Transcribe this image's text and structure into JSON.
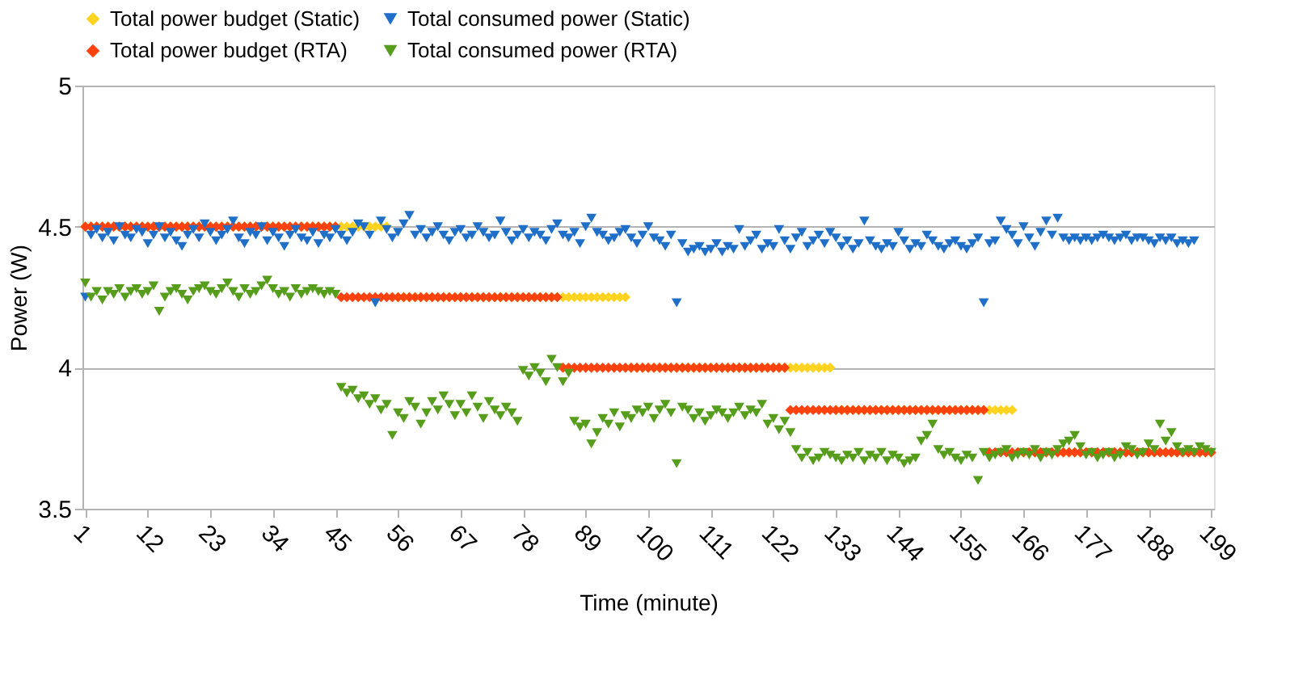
{
  "chart_data": {
    "type": "scatter",
    "xlabel": "Time (minute)",
    "ylabel": "Power (W)",
    "x": [
      1,
      2,
      3,
      4,
      5,
      6,
      7,
      8,
      9,
      10,
      11,
      12,
      13,
      14,
      15,
      16,
      17,
      18,
      19,
      20,
      21,
      22,
      23,
      24,
      25,
      26,
      27,
      28,
      29,
      30,
      31,
      32,
      33,
      34,
      35,
      36,
      37,
      38,
      39,
      40,
      41,
      42,
      43,
      44,
      45,
      46,
      47,
      48,
      49,
      50,
      51,
      52,
      53,
      54,
      55,
      56,
      57,
      58,
      59,
      60,
      61,
      62,
      63,
      64,
      65,
      66,
      67,
      68,
      69,
      70,
      71,
      72,
      73,
      74,
      75,
      76,
      77,
      78,
      79,
      80,
      81,
      82,
      83,
      84,
      85,
      86,
      87,
      88,
      89,
      90,
      91,
      92,
      93,
      94,
      95,
      96,
      97,
      98,
      99,
      100,
      101,
      102,
      103,
      104,
      105,
      106,
      107,
      108,
      109,
      110,
      111,
      112,
      113,
      114,
      115,
      116,
      117,
      118,
      119,
      120,
      121,
      122,
      123,
      124,
      125,
      126,
      127,
      128,
      129,
      130,
      131,
      132,
      133,
      134,
      135,
      136,
      137,
      138,
      139,
      140,
      141,
      142,
      143,
      144,
      145,
      146,
      147,
      148,
      149,
      150,
      151,
      152,
      153,
      154,
      155,
      156,
      157,
      158,
      159,
      160,
      161,
      162,
      163,
      164,
      165,
      166,
      167,
      168,
      169,
      170,
      171,
      172,
      173,
      174,
      175,
      176,
      177,
      178,
      179,
      180,
      181,
      182,
      183,
      184,
      185,
      186,
      187,
      188,
      189,
      190,
      191,
      192,
      193,
      194,
      195,
      196,
      197,
      198,
      199
    ],
    "xlim": [
      0.5,
      199.5
    ],
    "xticks": [
      1,
      12,
      23,
      34,
      45,
      56,
      67,
      78,
      89,
      100,
      111,
      122,
      133,
      144,
      155,
      166,
      177,
      188,
      199
    ],
    "ylim": [
      3.5,
      5
    ],
    "yticks": [
      3.5,
      4,
      4.5,
      5
    ],
    "grid": "y",
    "legend": "top",
    "series": [
      {
        "name": "Total power budget (Static)",
        "color": "#ffd320",
        "marker": "diamond",
        "values": [
          4.5,
          4.5,
          4.5,
          4.5,
          4.5,
          4.5,
          4.5,
          4.5,
          4.5,
          4.5,
          4.5,
          4.5,
          4.5,
          4.5,
          4.5,
          4.5,
          4.5,
          4.5,
          4.5,
          4.5,
          4.5,
          4.5,
          4.5,
          4.5,
          4.5,
          4.5,
          4.5,
          4.5,
          4.5,
          4.5,
          4.5,
          4.5,
          4.5,
          4.5,
          4.5,
          4.5,
          4.5,
          4.5,
          4.5,
          4.5,
          4.5,
          4.5,
          4.5,
          4.5,
          4.5,
          4.5,
          4.5,
          4.5,
          4.5,
          4.5,
          4.5,
          4.5,
          4.5,
          4.5,
          4.25,
          4.25,
          4.25,
          4.25,
          4.25,
          4.25,
          4.25,
          4.25,
          4.25,
          4.25,
          4.25,
          4.25,
          4.25,
          4.25,
          4.25,
          4.25,
          4.25,
          4.25,
          4.25,
          4.25,
          4.25,
          4.25,
          4.25,
          4.25,
          4.25,
          4.25,
          4.25,
          4.25,
          4.25,
          4.25,
          4.25,
          4.25,
          4.25,
          4.25,
          4.25,
          4.25,
          4.25,
          4.25,
          4.25,
          4.25,
          4.25,
          4.25,
          4.0,
          4.0,
          4.0,
          4.0,
          4.0,
          4.0,
          4.0,
          4.0,
          4.0,
          4.0,
          4.0,
          4.0,
          4.0,
          4.0,
          4.0,
          4.0,
          4.0,
          4.0,
          4.0,
          4.0,
          4.0,
          4.0,
          4.0,
          4.0,
          4.0,
          4.0,
          4.0,
          4.0,
          4.0,
          4.0,
          4.0,
          4.0,
          4.0,
          4.0,
          4.0,
          4.0,
          3.85,
          3.85,
          3.85,
          3.85,
          3.85,
          3.85,
          3.85,
          3.85,
          3.85,
          3.85,
          3.85,
          3.85,
          3.85,
          3.85,
          3.85,
          3.85,
          3.85,
          3.85,
          3.85,
          3.85,
          3.85,
          3.85,
          3.85,
          3.85,
          3.85,
          3.85,
          3.85,
          3.85,
          3.85,
          3.85,
          3.85,
          3.85,
          3.7,
          3.7,
          3.7,
          3.7,
          3.7,
          3.7,
          3.7,
          3.7,
          3.7,
          3.7,
          3.7,
          3.7,
          3.7,
          3.7,
          3.7,
          3.7,
          3.7,
          3.7,
          3.7,
          3.7,
          3.7,
          3.7,
          3.7,
          3.7,
          3.7,
          3.7,
          3.7,
          3.7,
          3.7,
          3.7,
          3.7,
          3.7,
          3.7,
          3.7,
          3.7
        ]
      },
      {
        "name": "Total consumed power (Static)",
        "color": "#1f6fc9",
        "marker": "triangle-down",
        "values": [
          4.25,
          4.47,
          4.49,
          4.46,
          4.48,
          4.45,
          4.5,
          4.47,
          4.46,
          4.49,
          4.48,
          4.44,
          4.47,
          4.5,
          4.46,
          4.48,
          4.45,
          4.43,
          4.47,
          4.49,
          4.46,
          4.51,
          4.48,
          4.45,
          4.47,
          4.49,
          4.52,
          4.46,
          4.44,
          4.48,
          4.47,
          4.5,
          4.45,
          4.48,
          4.46,
          4.43,
          4.47,
          4.49,
          4.46,
          4.45,
          4.48,
          4.44,
          4.47,
          4.46,
          4.49,
          4.47,
          4.45,
          4.48,
          4.51,
          4.5,
          4.47,
          4.23,
          4.52,
          4.49,
          4.46,
          4.48,
          4.51,
          4.54,
          4.47,
          4.49,
          4.46,
          4.48,
          4.5,
          4.47,
          4.45,
          4.48,
          4.49,
          4.46,
          4.47,
          4.5,
          4.48,
          4.46,
          4.47,
          4.52,
          4.48,
          4.45,
          4.47,
          4.49,
          4.46,
          4.48,
          4.47,
          4.45,
          4.49,
          4.51,
          4.47,
          4.46,
          4.48,
          4.44,
          4.5,
          4.53,
          4.48,
          4.47,
          4.45,
          4.46,
          4.48,
          4.49,
          4.46,
          4.44,
          4.47,
          4.5,
          4.46,
          4.45,
          4.43,
          4.47,
          4.23,
          4.44,
          4.41,
          4.42,
          4.43,
          4.41,
          4.42,
          4.44,
          4.41,
          4.43,
          4.42,
          4.49,
          4.43,
          4.45,
          4.47,
          4.42,
          4.44,
          4.43,
          4.49,
          4.45,
          4.42,
          4.46,
          4.48,
          4.43,
          4.45,
          4.47,
          4.44,
          4.48,
          4.46,
          4.43,
          4.45,
          4.42,
          4.44,
          4.52,
          4.45,
          4.43,
          4.42,
          4.44,
          4.43,
          4.48,
          4.45,
          4.42,
          4.44,
          4.43,
          4.47,
          4.45,
          4.43,
          4.42,
          4.44,
          4.45,
          4.43,
          4.42,
          4.44,
          4.46,
          4.23,
          4.44,
          4.45,
          4.52,
          4.49,
          4.47,
          4.44,
          4.5,
          4.46,
          4.43,
          4.48,
          4.52,
          4.47,
          4.53,
          4.46,
          4.45,
          4.46,
          4.45,
          4.46,
          4.45,
          4.46,
          4.47,
          4.46,
          4.45,
          4.46,
          4.47,
          4.45,
          4.46,
          4.46,
          4.45,
          4.44,
          4.46,
          4.45,
          4.46,
          4.44,
          4.45,
          4.44,
          4.45,
          null,
          null,
          null
        ]
      },
      {
        "name": "Total power budget (RTA)",
        "color": "#ff420e",
        "marker": "diamond",
        "values": [
          4.5,
          4.5,
          4.5,
          4.5,
          4.5,
          4.5,
          4.5,
          4.5,
          4.5,
          4.5,
          4.5,
          4.5,
          4.5,
          4.5,
          4.5,
          4.5,
          4.5,
          4.5,
          4.5,
          4.5,
          4.5,
          4.5,
          4.5,
          4.5,
          4.5,
          4.5,
          4.5,
          4.5,
          4.5,
          4.5,
          4.5,
          4.5,
          4.5,
          4.5,
          4.5,
          4.5,
          4.5,
          4.5,
          4.5,
          4.5,
          4.5,
          4.5,
          4.5,
          4.5,
          4.5,
          4.25,
          4.25,
          4.25,
          4.25,
          4.25,
          4.25,
          4.25,
          4.25,
          4.25,
          4.25,
          4.25,
          4.25,
          4.25,
          4.25,
          4.25,
          4.25,
          4.25,
          4.25,
          4.25,
          4.25,
          4.25,
          4.25,
          4.25,
          4.25,
          4.25,
          4.25,
          4.25,
          4.25,
          4.25,
          4.25,
          4.25,
          4.25,
          4.25,
          4.25,
          4.25,
          4.25,
          4.25,
          4.25,
          4.25,
          4.0,
          4.0,
          4.0,
          4.0,
          4.0,
          4.0,
          4.0,
          4.0,
          4.0,
          4.0,
          4.0,
          4.0,
          4.0,
          4.0,
          4.0,
          4.0,
          4.0,
          4.0,
          4.0,
          4.0,
          4.0,
          4.0,
          4.0,
          4.0,
          4.0,
          4.0,
          4.0,
          4.0,
          4.0,
          4.0,
          4.0,
          4.0,
          4.0,
          4.0,
          4.0,
          4.0,
          4.0,
          4.0,
          4.0,
          4.0,
          3.85,
          3.85,
          3.85,
          3.85,
          3.85,
          3.85,
          3.85,
          3.85,
          3.85,
          3.85,
          3.85,
          3.85,
          3.85,
          3.85,
          3.85,
          3.85,
          3.85,
          3.85,
          3.85,
          3.85,
          3.85,
          3.85,
          3.85,
          3.85,
          3.85,
          3.85,
          3.85,
          3.85,
          3.85,
          3.85,
          3.85,
          3.85,
          3.85,
          3.85,
          3.85,
          3.7,
          3.7,
          3.7,
          3.7,
          3.7,
          3.7,
          3.7,
          3.7,
          3.7,
          3.7,
          3.7,
          3.7,
          3.7,
          3.7,
          3.7,
          3.7,
          3.7,
          3.7,
          3.7,
          3.7,
          3.7,
          3.7,
          3.7,
          3.7,
          3.7,
          3.7,
          3.7,
          3.7,
          3.7,
          3.7,
          3.7,
          3.7,
          3.7,
          3.7,
          3.7,
          3.7,
          3.7,
          3.7,
          3.7,
          3.7
        ]
      },
      {
        "name": "Total consumed power (RTA)",
        "color": "#579d1c",
        "marker": "triangle-down",
        "values": [
          4.3,
          4.25,
          4.27,
          4.24,
          4.27,
          4.26,
          4.28,
          4.25,
          4.27,
          4.28,
          4.26,
          4.27,
          4.29,
          4.2,
          4.25,
          4.27,
          4.28,
          4.26,
          4.24,
          4.27,
          4.28,
          4.29,
          4.27,
          4.26,
          4.28,
          4.3,
          4.27,
          4.25,
          4.28,
          4.26,
          4.27,
          4.29,
          4.31,
          4.28,
          4.26,
          4.27,
          4.25,
          4.28,
          4.26,
          4.27,
          4.28,
          4.27,
          4.26,
          4.27,
          4.26,
          3.93,
          3.91,
          3.92,
          3.89,
          3.9,
          3.87,
          3.89,
          3.85,
          3.87,
          3.76,
          3.84,
          3.82,
          3.88,
          3.86,
          3.8,
          3.84,
          3.88,
          3.85,
          3.9,
          3.87,
          3.83,
          3.87,
          3.84,
          3.9,
          3.86,
          3.82,
          3.88,
          3.85,
          3.83,
          3.86,
          3.84,
          3.81,
          3.99,
          3.97,
          4.0,
          3.98,
          3.95,
          4.03,
          4.0,
          3.95,
          3.98,
          3.81,
          3.79,
          3.8,
          3.73,
          3.77,
          3.82,
          3.8,
          3.84,
          3.79,
          3.83,
          3.82,
          3.85,
          3.84,
          3.86,
          3.82,
          3.85,
          3.87,
          3.84,
          3.66,
          3.86,
          3.85,
          3.82,
          3.84,
          3.81,
          3.83,
          3.85,
          3.84,
          3.82,
          3.84,
          3.86,
          3.83,
          3.85,
          3.84,
          3.87,
          3.8,
          3.82,
          3.78,
          3.81,
          3.77,
          3.71,
          3.68,
          3.7,
          3.67,
          3.68,
          3.7,
          3.69,
          3.68,
          3.67,
          3.69,
          3.68,
          3.7,
          3.67,
          3.69,
          3.68,
          3.7,
          3.67,
          3.69,
          3.68,
          3.66,
          3.67,
          3.68,
          3.74,
          3.76,
          3.8,
          3.71,
          3.69,
          3.7,
          3.68,
          3.67,
          3.69,
          3.68,
          3.6,
          3.7,
          3.68,
          3.69,
          3.7,
          3.71,
          3.68,
          3.69,
          3.7,
          3.69,
          3.71,
          3.68,
          3.7,
          3.69,
          3.71,
          3.73,
          3.74,
          3.76,
          3.72,
          3.69,
          3.7,
          3.68,
          3.69,
          3.7,
          3.68,
          3.69,
          3.72,
          3.71,
          3.69,
          3.7,
          3.73,
          3.71,
          3.8,
          3.74,
          3.77,
          3.72,
          3.7,
          3.71,
          3.7,
          3.72,
          3.71,
          3.7
        ]
      }
    ]
  }
}
